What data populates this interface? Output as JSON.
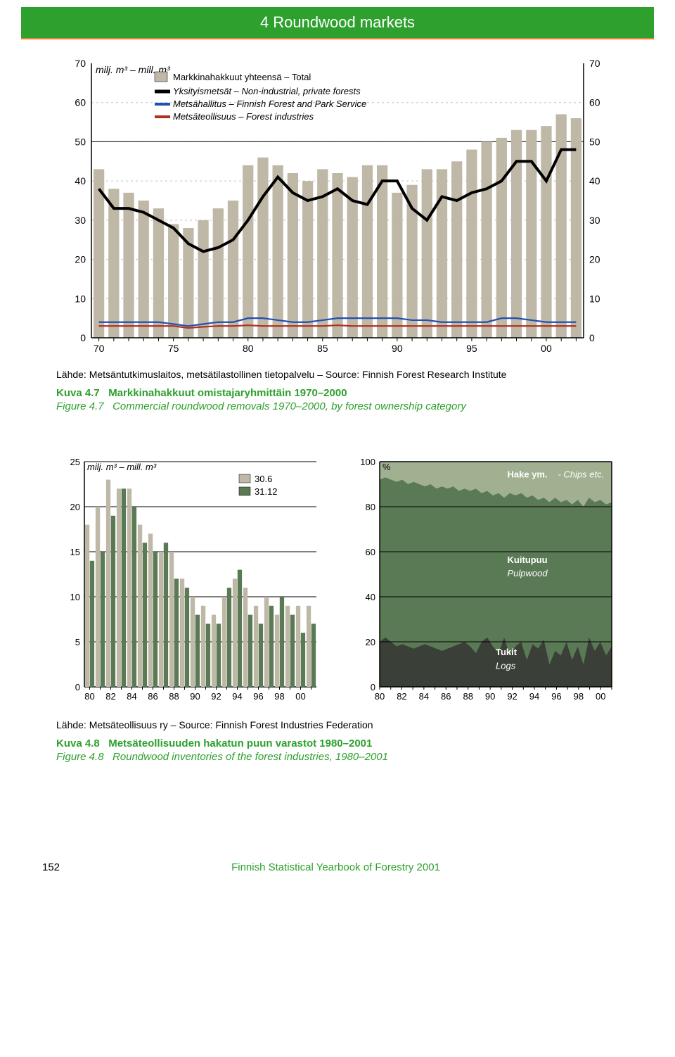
{
  "header": {
    "title": "4 Roundwood markets"
  },
  "chart1": {
    "type": "bar+line",
    "unit_label": "milj. m³ – mill. m³",
    "legend": {
      "bar": "Markkinahakkuut yhteensä – Total",
      "line_black": "Yksityismetsät – Non-industrial, private forests",
      "line_blue": "Metsähallitus – Finnish Forest and Park Service",
      "line_red": "Metsäteollisuus – Forest industries"
    },
    "ylim": [
      0,
      70
    ],
    "ytick_step": 10,
    "xticks": [
      "70",
      "75",
      "80",
      "85",
      "90",
      "95",
      "00"
    ],
    "bar_color": "#bfb8a7",
    "line_colors": {
      "black": "#000000",
      "blue": "#2050b0",
      "red": "#b03020"
    },
    "grid_color": "#c0c0c0",
    "axis_color": "#000000",
    "bars": [
      43,
      38,
      37,
      35,
      33,
      29,
      28,
      30,
      33,
      35,
      44,
      46,
      44,
      42,
      40,
      43,
      42,
      41,
      44,
      44,
      37,
      39,
      43,
      43,
      45,
      48,
      50,
      51,
      53,
      53,
      54,
      57,
      56
    ],
    "line_black_vals": [
      38,
      33,
      33,
      32,
      30,
      28,
      24,
      22,
      23,
      25,
      30,
      36,
      41,
      37,
      35,
      36,
      38,
      35,
      34,
      40,
      40,
      33,
      30,
      36,
      35,
      37,
      38,
      40,
      45,
      45,
      40,
      48,
      48
    ],
    "line_blue_vals": [
      4,
      4,
      4,
      4,
      4,
      3.5,
      3,
      3.5,
      4,
      4,
      5,
      5,
      4.5,
      4,
      4,
      4.5,
      5,
      5,
      5,
      5,
      5,
      4.5,
      4.5,
      4,
      4,
      4,
      4,
      5,
      5,
      4.5,
      4,
      4,
      4
    ],
    "line_red_vals": [
      3,
      3,
      3,
      3,
      3,
      3,
      2.5,
      2.8,
      3,
      3,
      3.2,
      3,
      3,
      3,
      3,
      3,
      3.2,
      3,
      3,
      3,
      3,
      3,
      3,
      3,
      3,
      3,
      3,
      3,
      3,
      3,
      3,
      3,
      3
    ],
    "source": "Lähde: Metsäntutkimuslaitos, metsätilastollinen tietopalvelu – Source: Finnish Forest Research Institute",
    "caption_fi": "Kuva 4.7",
    "caption_fi_txt": "Markkinahakkuut omistajaryhmittäin 1970–2000",
    "caption_en": "Figure 4.7",
    "caption_en_txt": "Commercial roundwood removals 1970–2000, by forest ownership category"
  },
  "chart2": {
    "type": "grouped-bar",
    "unit_label": "milj. m³ – mill. m³",
    "legend": {
      "a": "30.6",
      "b": "31.12"
    },
    "colors": {
      "a": "#bfb8a7",
      "b": "#5a7a55"
    },
    "ylim": [
      0,
      25
    ],
    "ytick_step": 5,
    "xticks": [
      "80",
      "82",
      "84",
      "86",
      "88",
      "90",
      "92",
      "94",
      "96",
      "98",
      "00"
    ],
    "series_a": [
      18,
      20,
      23,
      22,
      22,
      18,
      17,
      15,
      15,
      12,
      10,
      9,
      8,
      10,
      12,
      11,
      9,
      10,
      8,
      9,
      9,
      9
    ],
    "series_b": [
      14,
      15,
      19,
      22,
      20,
      16,
      15,
      16,
      12,
      11,
      8,
      7,
      7,
      11,
      13,
      8,
      7,
      9,
      10,
      8,
      6,
      7
    ]
  },
  "chart3": {
    "type": "stacked-area",
    "unit_label": "%",
    "ylim": [
      0,
      100
    ],
    "ytick_step": 20,
    "xticks": [
      "80",
      "82",
      "84",
      "86",
      "88",
      "90",
      "92",
      "94",
      "96",
      "98",
      "00"
    ],
    "labels": {
      "top": "Hake ym. - Chips etc.",
      "mid": "Kuitupuu",
      "mid_en": "Pulpwood",
      "bot": "Tukit",
      "bot_en": "Logs"
    },
    "colors": {
      "top": "#a0b090",
      "mid": "#5a7a55",
      "bot": "#3a4038"
    },
    "lower_boundary": [
      20,
      22,
      20,
      18,
      19,
      18,
      17,
      18,
      19,
      18,
      17,
      16,
      17,
      18,
      19,
      20,
      18,
      15,
      20,
      22,
      18,
      15,
      22,
      14,
      18,
      20,
      12,
      19,
      17,
      21,
      10,
      16,
      14,
      20,
      12,
      18,
      10,
      22,
      16,
      20,
      14,
      18
    ],
    "upper_boundary": [
      92,
      93,
      92,
      91,
      92,
      90,
      91,
      90,
      89,
      90,
      88,
      89,
      88,
      89,
      87,
      88,
      87,
      88,
      86,
      87,
      85,
      86,
      84,
      86,
      85,
      86,
      84,
      85,
      83,
      84,
      82,
      84,
      82,
      83,
      81,
      83,
      80,
      84,
      82,
      83,
      81,
      82
    ]
  },
  "lower_source": "Lähde: Metsäteollisuus ry – Source: Finnish Forest Industries Federation",
  "lower_caption_fi": "Kuva 4.8",
  "lower_caption_fi_txt": "Metsäteollisuuden hakatun puun varastot 1980–2001",
  "lower_caption_en": "Figure 4.8",
  "lower_caption_en_txt": "Roundwood inventories of the forest industries, 1980–2001",
  "footer": {
    "page": "152",
    "publication": "Finnish Statistical Yearbook of Forestry 2001"
  }
}
